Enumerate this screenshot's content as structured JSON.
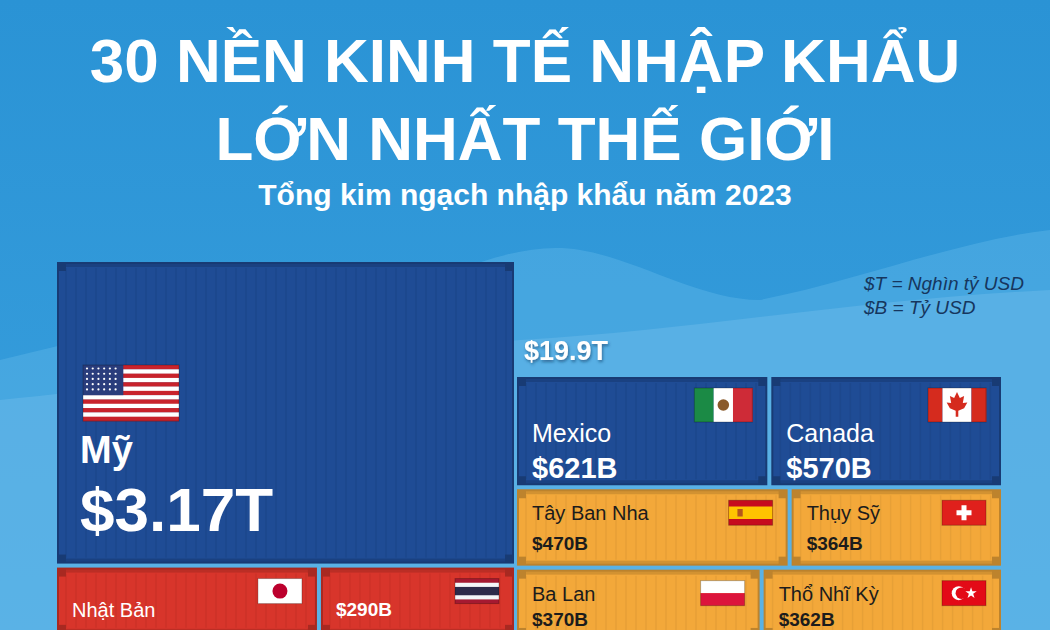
{
  "chart_data": {
    "type": "treemap",
    "title": [
      "30 NỀN KINH TẾ NHẬP KHẨU",
      "LỚN NHẤT THẾ GIỚI"
    ],
    "subtitle": "Tổng kim ngạch nhập khẩu năm 2023",
    "annotations": [
      "$19.9T",
      "$T = Nghìn tỷ USD",
      "$B = Tỷ USD"
    ],
    "categories": [
      "Mỹ",
      "Mexico",
      "Canada",
      "Tây Ban Nha",
      "Thụy Sỹ",
      "Ba Lan",
      "Thổ Nhĩ Kỳ",
      "Nhật Bản",
      null
    ],
    "values": [
      3170,
      621,
      570,
      470,
      364,
      370,
      362,
      390,
      290
    ],
    "value_labels": [
      "$3.17T",
      "$621B",
      "$570B",
      "$470B",
      "$364B",
      "$370B",
      "$362B",
      null,
      "$290B"
    ],
    "colors": [
      "#1f4c95",
      "#1f4c95",
      "#1f4c95",
      "#f3a83a",
      "#f3a83a",
      "#f3a83a",
      "#f3a83a",
      "#d8352b",
      "#d8352b"
    ],
    "data_labels": true
  }
}
